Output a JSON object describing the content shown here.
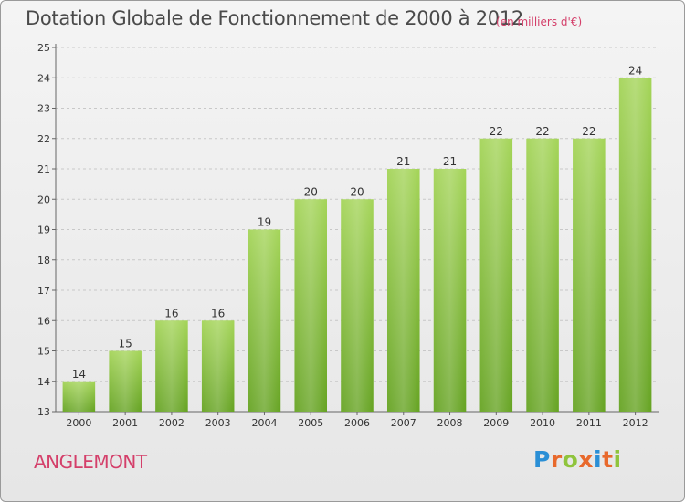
{
  "header": {
    "title": "Dotation Globale de Fonctionnement de 2000 à 2012",
    "unit": "(en milliers d'€)"
  },
  "footer": {
    "commune": "ANGLEMONT",
    "logo": {
      "letters": [
        "P",
        "r",
        "o",
        "x",
        "i",
        "t",
        "i"
      ],
      "colors": [
        "#2a8fd6",
        "#e8692c",
        "#8fc43c",
        "#e8692c",
        "#2a8fd6",
        "#e8692c",
        "#8fc43c"
      ]
    }
  },
  "chart_data": {
    "type": "bar",
    "title": "Dotation Globale de Fonctionnement de 2000 à 2012",
    "subtitle": "(en milliers d'€)",
    "categories": [
      "2000",
      "2001",
      "2002",
      "2003",
      "2004",
      "2005",
      "2006",
      "2007",
      "2008",
      "2009",
      "2010",
      "2011",
      "2012"
    ],
    "values": [
      14,
      15,
      16,
      16,
      19,
      20,
      20,
      21,
      21,
      22,
      22,
      22,
      24
    ],
    "ylim": [
      13,
      25
    ],
    "yticks": [
      13,
      14,
      15,
      16,
      17,
      18,
      19,
      20,
      21,
      22,
      23,
      24,
      25
    ],
    "grid": true,
    "bar_color": "#7cc22e"
  }
}
